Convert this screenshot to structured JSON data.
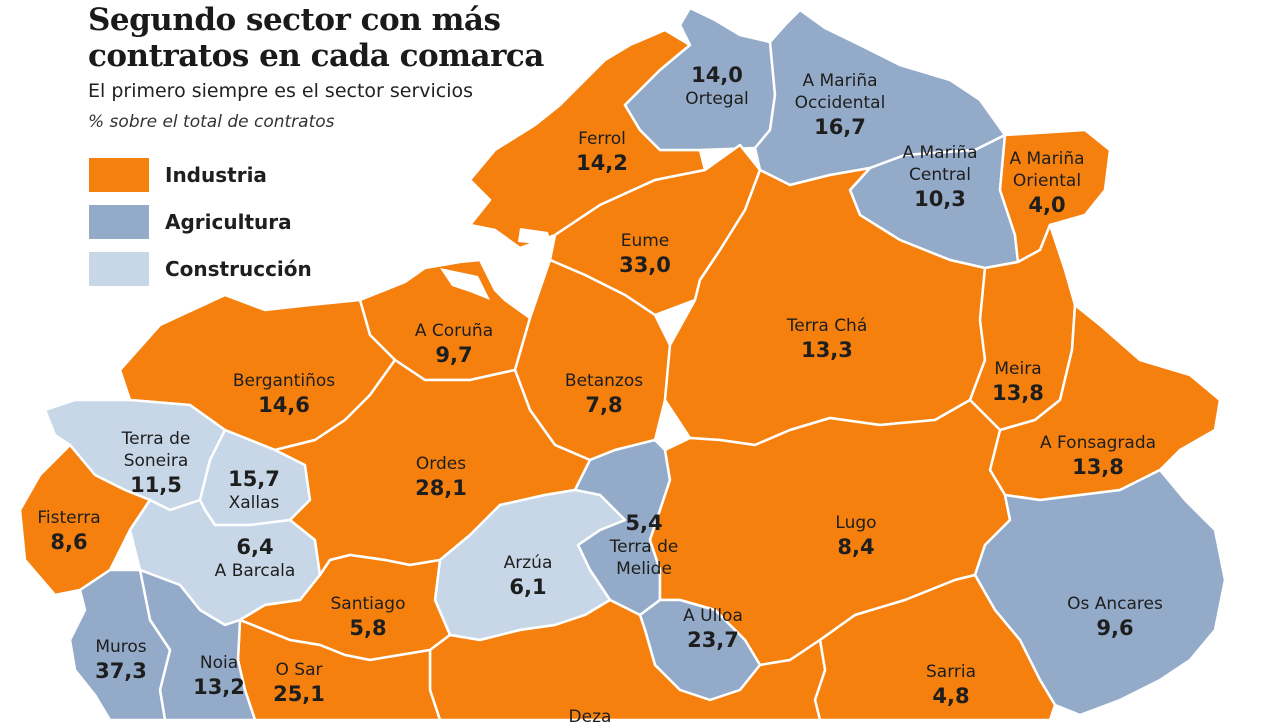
{
  "header": {
    "title_line1": "Segundo sector con más",
    "title_line2": "contratos en cada comarca",
    "subtitle": "El primero siempre es el sector servicios",
    "unit": "% sobre el total de contratos"
  },
  "colors": {
    "industria": "#F5800E",
    "agricultura": "#93ABC9",
    "construccion": "#C8D7E7",
    "border": "#ffffff"
  },
  "legend": [
    {
      "label": "Industria",
      "color": "#F5800E"
    },
    {
      "label": "Agricultura",
      "color": "#93ABC9"
    },
    {
      "label": "Construcción",
      "color": "#C8D7E7"
    }
  ],
  "comarcas": [
    {
      "name": "Ortegal",
      "value": "14,0",
      "sector": "agricultura"
    },
    {
      "name": "A Mariña Occidental",
      "value": "16,7",
      "sector": "agricultura"
    },
    {
      "name": "A Mariña Central",
      "value": "10,3",
      "sector": "agricultura"
    },
    {
      "name": "A Mariña Oriental",
      "value": "4,0",
      "sector": "industria"
    },
    {
      "name": "Ferrol",
      "value": "14,2",
      "sector": "industria"
    },
    {
      "name": "Eume",
      "value": "33,0",
      "sector": "industria"
    },
    {
      "name": "Terra Chá",
      "value": "13,3",
      "sector": "industria"
    },
    {
      "name": "A Coruña",
      "value": "9,7",
      "sector": "industria"
    },
    {
      "name": "Bergantiños",
      "value": "14,6",
      "sector": "industria"
    },
    {
      "name": "Betanzos",
      "value": "7,8",
      "sector": "industria"
    },
    {
      "name": "Meira",
      "value": "13,8",
      "sector": "industria"
    },
    {
      "name": "A Fonsagrada",
      "value": "13,8",
      "sector": "industria"
    },
    {
      "name": "Terra de Soneira",
      "value": "11,5",
      "sector": "construccion"
    },
    {
      "name": "Xallas",
      "value": "15,7",
      "sector": "construccion"
    },
    {
      "name": "Ordes",
      "value": "28,1",
      "sector": "industria"
    },
    {
      "name": "Fisterra",
      "value": "8,6",
      "sector": "industria"
    },
    {
      "name": "A Barcala",
      "value": "6,4",
      "sector": "construccion"
    },
    {
      "name": "Terra de Melide",
      "value": "5,4",
      "sector": "agricultura"
    },
    {
      "name": "Lugo",
      "value": "8,4",
      "sector": "industria"
    },
    {
      "name": "Arzúa",
      "value": "6,1",
      "sector": "construccion"
    },
    {
      "name": "Santiago",
      "value": "5,8",
      "sector": "industria"
    },
    {
      "name": "A Ulloa",
      "value": "23,7",
      "sector": "agricultura"
    },
    {
      "name": "Os Ancares",
      "value": "9,6",
      "sector": "agricultura"
    },
    {
      "name": "Muros",
      "value": "37,3",
      "sector": "agricultura"
    },
    {
      "name": "Noia",
      "value": "13,2",
      "sector": "agricultura"
    },
    {
      "name": "O Sar",
      "value": "25,1",
      "sector": "industria"
    },
    {
      "name": "Sarria",
      "value": "4,8",
      "sector": "industria"
    },
    {
      "name": "Deza",
      "value": "",
      "sector": "industria"
    }
  ]
}
